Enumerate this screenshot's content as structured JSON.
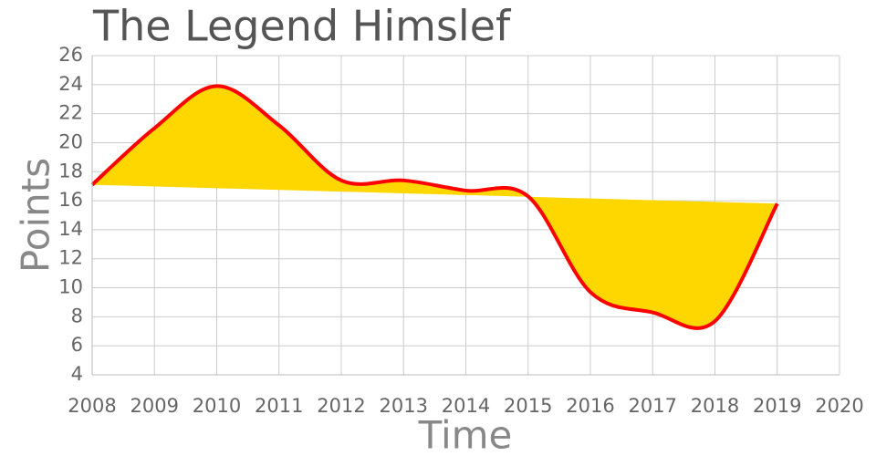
{
  "chart_data": {
    "type": "line",
    "title": "The Legend Himslef",
    "x_label": "Time",
    "y_label": "Points",
    "x": [
      2008,
      2009,
      2010,
      2011,
      2012,
      2013,
      2014,
      2015,
      2016,
      2017,
      2018,
      2019
    ],
    "series": [
      {
        "values": [
          17.1,
          21.0,
          23.9,
          21.2,
          17.4,
          17.4,
          16.7,
          16.3,
          9.7,
          8.3,
          7.7,
          15.8
        ],
        "color": "#ff0000",
        "fill": "#ffd700"
      }
    ],
    "xlim": [
      2008,
      2020
    ],
    "xticks": [
      2008,
      2009,
      2010,
      2011,
      2012,
      2013,
      2014,
      2015,
      2016,
      2017,
      2018,
      2019,
      2020
    ],
    "ylim": [
      4,
      26
    ],
    "yticks": [
      4,
      6,
      8,
      10,
      12,
      14,
      16,
      18,
      20,
      22,
      24,
      26
    ],
    "grid": true
  }
}
